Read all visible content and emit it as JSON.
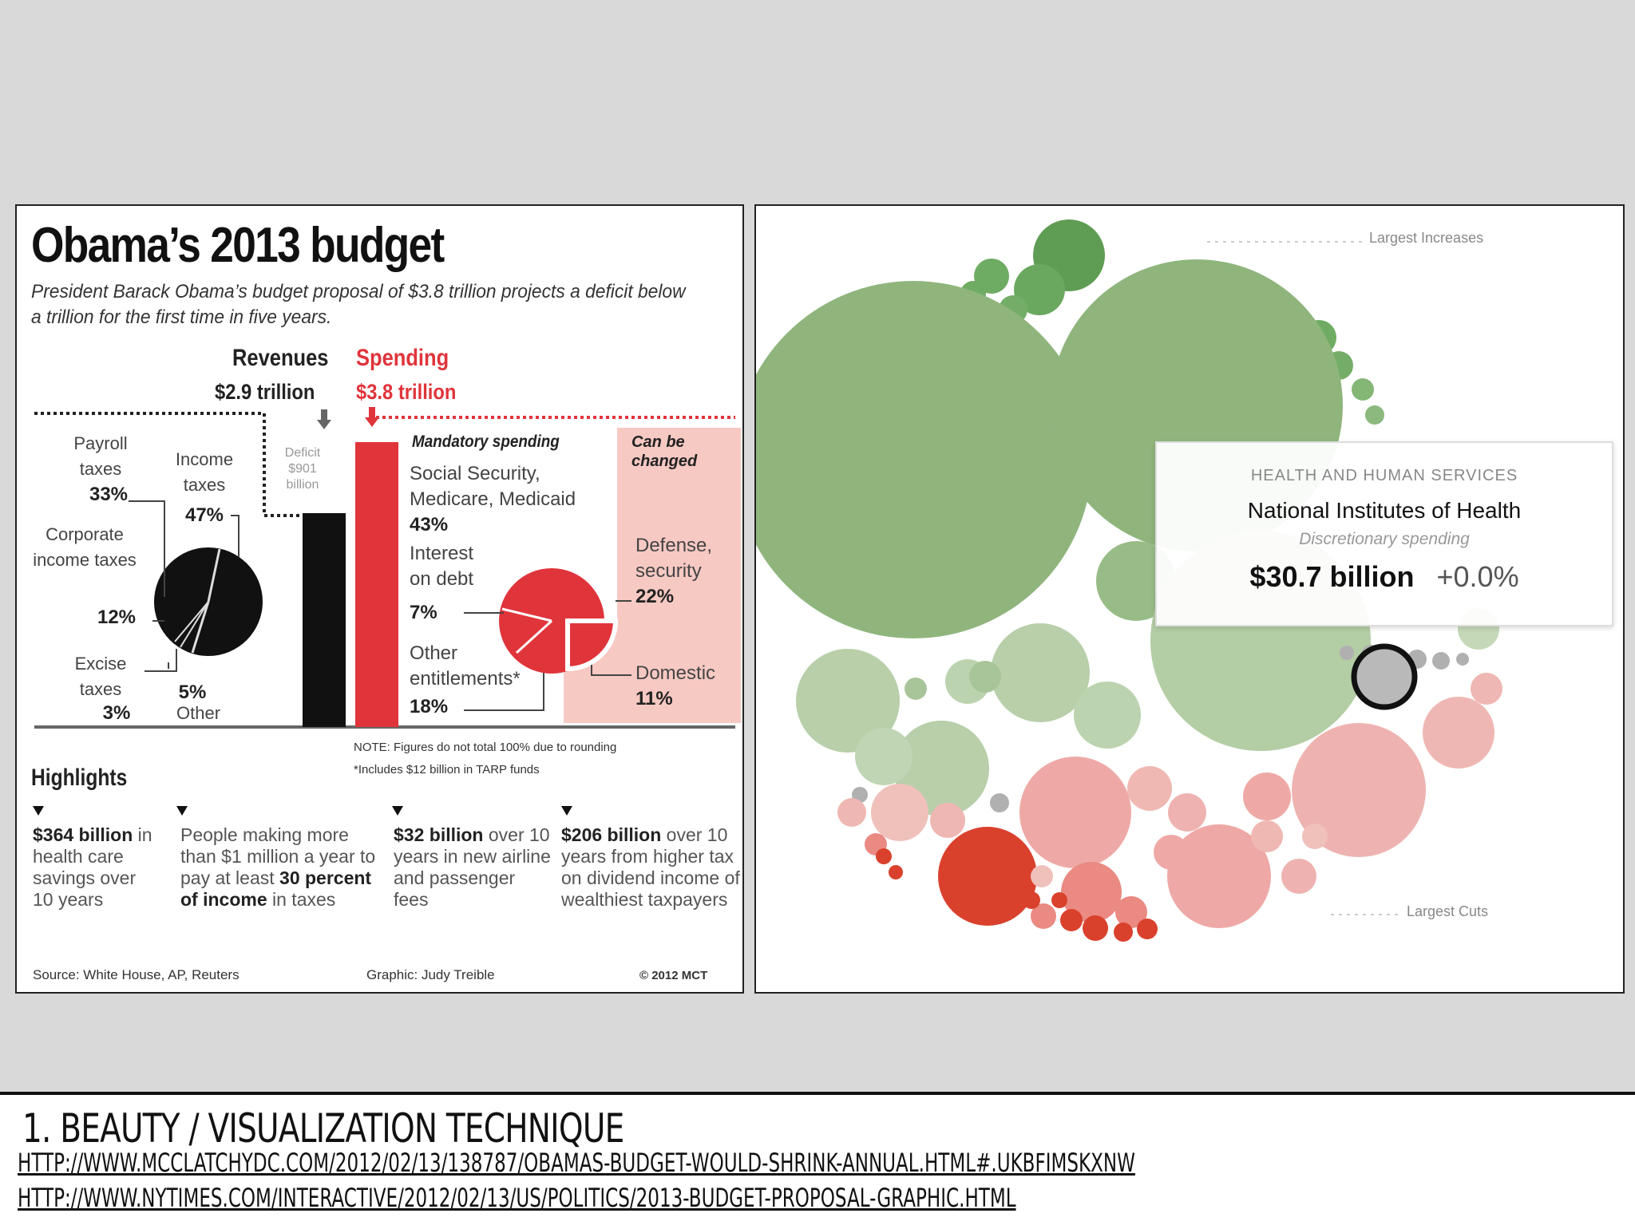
{
  "left_graphic": {
    "title": "Obama’s 2013 budget",
    "subtitle": "President Barack Obama’s budget proposal of $3.8 trillion projects a deficit below a trillion for the first time in five years.",
    "revenues": {
      "label": "Revenues",
      "amount": "$2.9 trillion"
    },
    "spending": {
      "label": "Spending",
      "amount": "$3.8 trillion"
    },
    "deficit": {
      "text": "Deficit $901 billion"
    },
    "revenue_breakdown": {
      "payroll": {
        "label": "Payroll taxes",
        "pct": "33%"
      },
      "income": {
        "label": "Income taxes",
        "pct": "47%"
      },
      "corporate": {
        "label": "Corporate income taxes",
        "pct": "12%"
      },
      "excise": {
        "label": "Excise taxes",
        "pct": "3%"
      },
      "other": {
        "label": "Other",
        "pct": "5%"
      }
    },
    "spending_breakdown": {
      "mandatory_header": "Mandatory spending",
      "can_change_header": "Can be changed",
      "social": {
        "label": "Social Security, Medicare, Medicaid",
        "pct": "43%"
      },
      "interest": {
        "label": "Interest on debt",
        "pct": "7%"
      },
      "other_ent": {
        "label": "Other entitlements*",
        "pct": "18%"
      },
      "defense": {
        "label": "Defense, security",
        "pct": "22%"
      },
      "domestic": {
        "label": "Domestic",
        "pct": "11%"
      }
    },
    "notes": {
      "note1": "NOTE: Figures do not total 100% due to rounding",
      "note2": "*Includes $12 billion in TARP funds"
    },
    "highlights": {
      "heading": "Highlights",
      "h1_bold": "$364 billion",
      "h1_text": "in health care savings over 10 years",
      "h2_pre": "People making more than $1 million a year to pay at least",
      "h2_bold1": "30 percent",
      "h2_bold2": "of income",
      "h2_post": "in taxes",
      "h3_bold": "$32 billion",
      "h3_text": "over 10 years in new airline and passenger fees",
      "h4_bold": "$206 billion",
      "h4_text": "over 10 years from higher tax on dividend income of wealthiest taxpayers"
    },
    "footer": {
      "source": "Source: White House, AP, Reuters",
      "graphic": "Graphic: Judy Treible",
      "copyright": "© 2012 MCT"
    }
  },
  "right_graphic": {
    "label_top": "Largest Increases",
    "label_bottom": "Largest Cuts",
    "tooltip": {
      "category": "HEALTH AND HUMAN SERVICES",
      "name": "National Institutes of Health",
      "type": "Discretionary spending",
      "amount": "$30.7 billion",
      "change": "+0.0%"
    }
  },
  "caption": {
    "title": "1. BEAUTY / VISUALIZATION TECHNIQUE",
    "link1": "HTTP://WWW.MCCLATCHYDC.COM/2012/02/13/138787/OBAMAS-BUDGET-WOULD-SHRINK-ANNUAL.HTML#.UKBFIMSKXNW",
    "link2": "HTTP://WWW.NYTIMES.COM/INTERACTIVE/2012/02/13/US/POLITICS/2013-BUDGET-PROPOSAL-GRAPHIC.HTML"
  }
}
